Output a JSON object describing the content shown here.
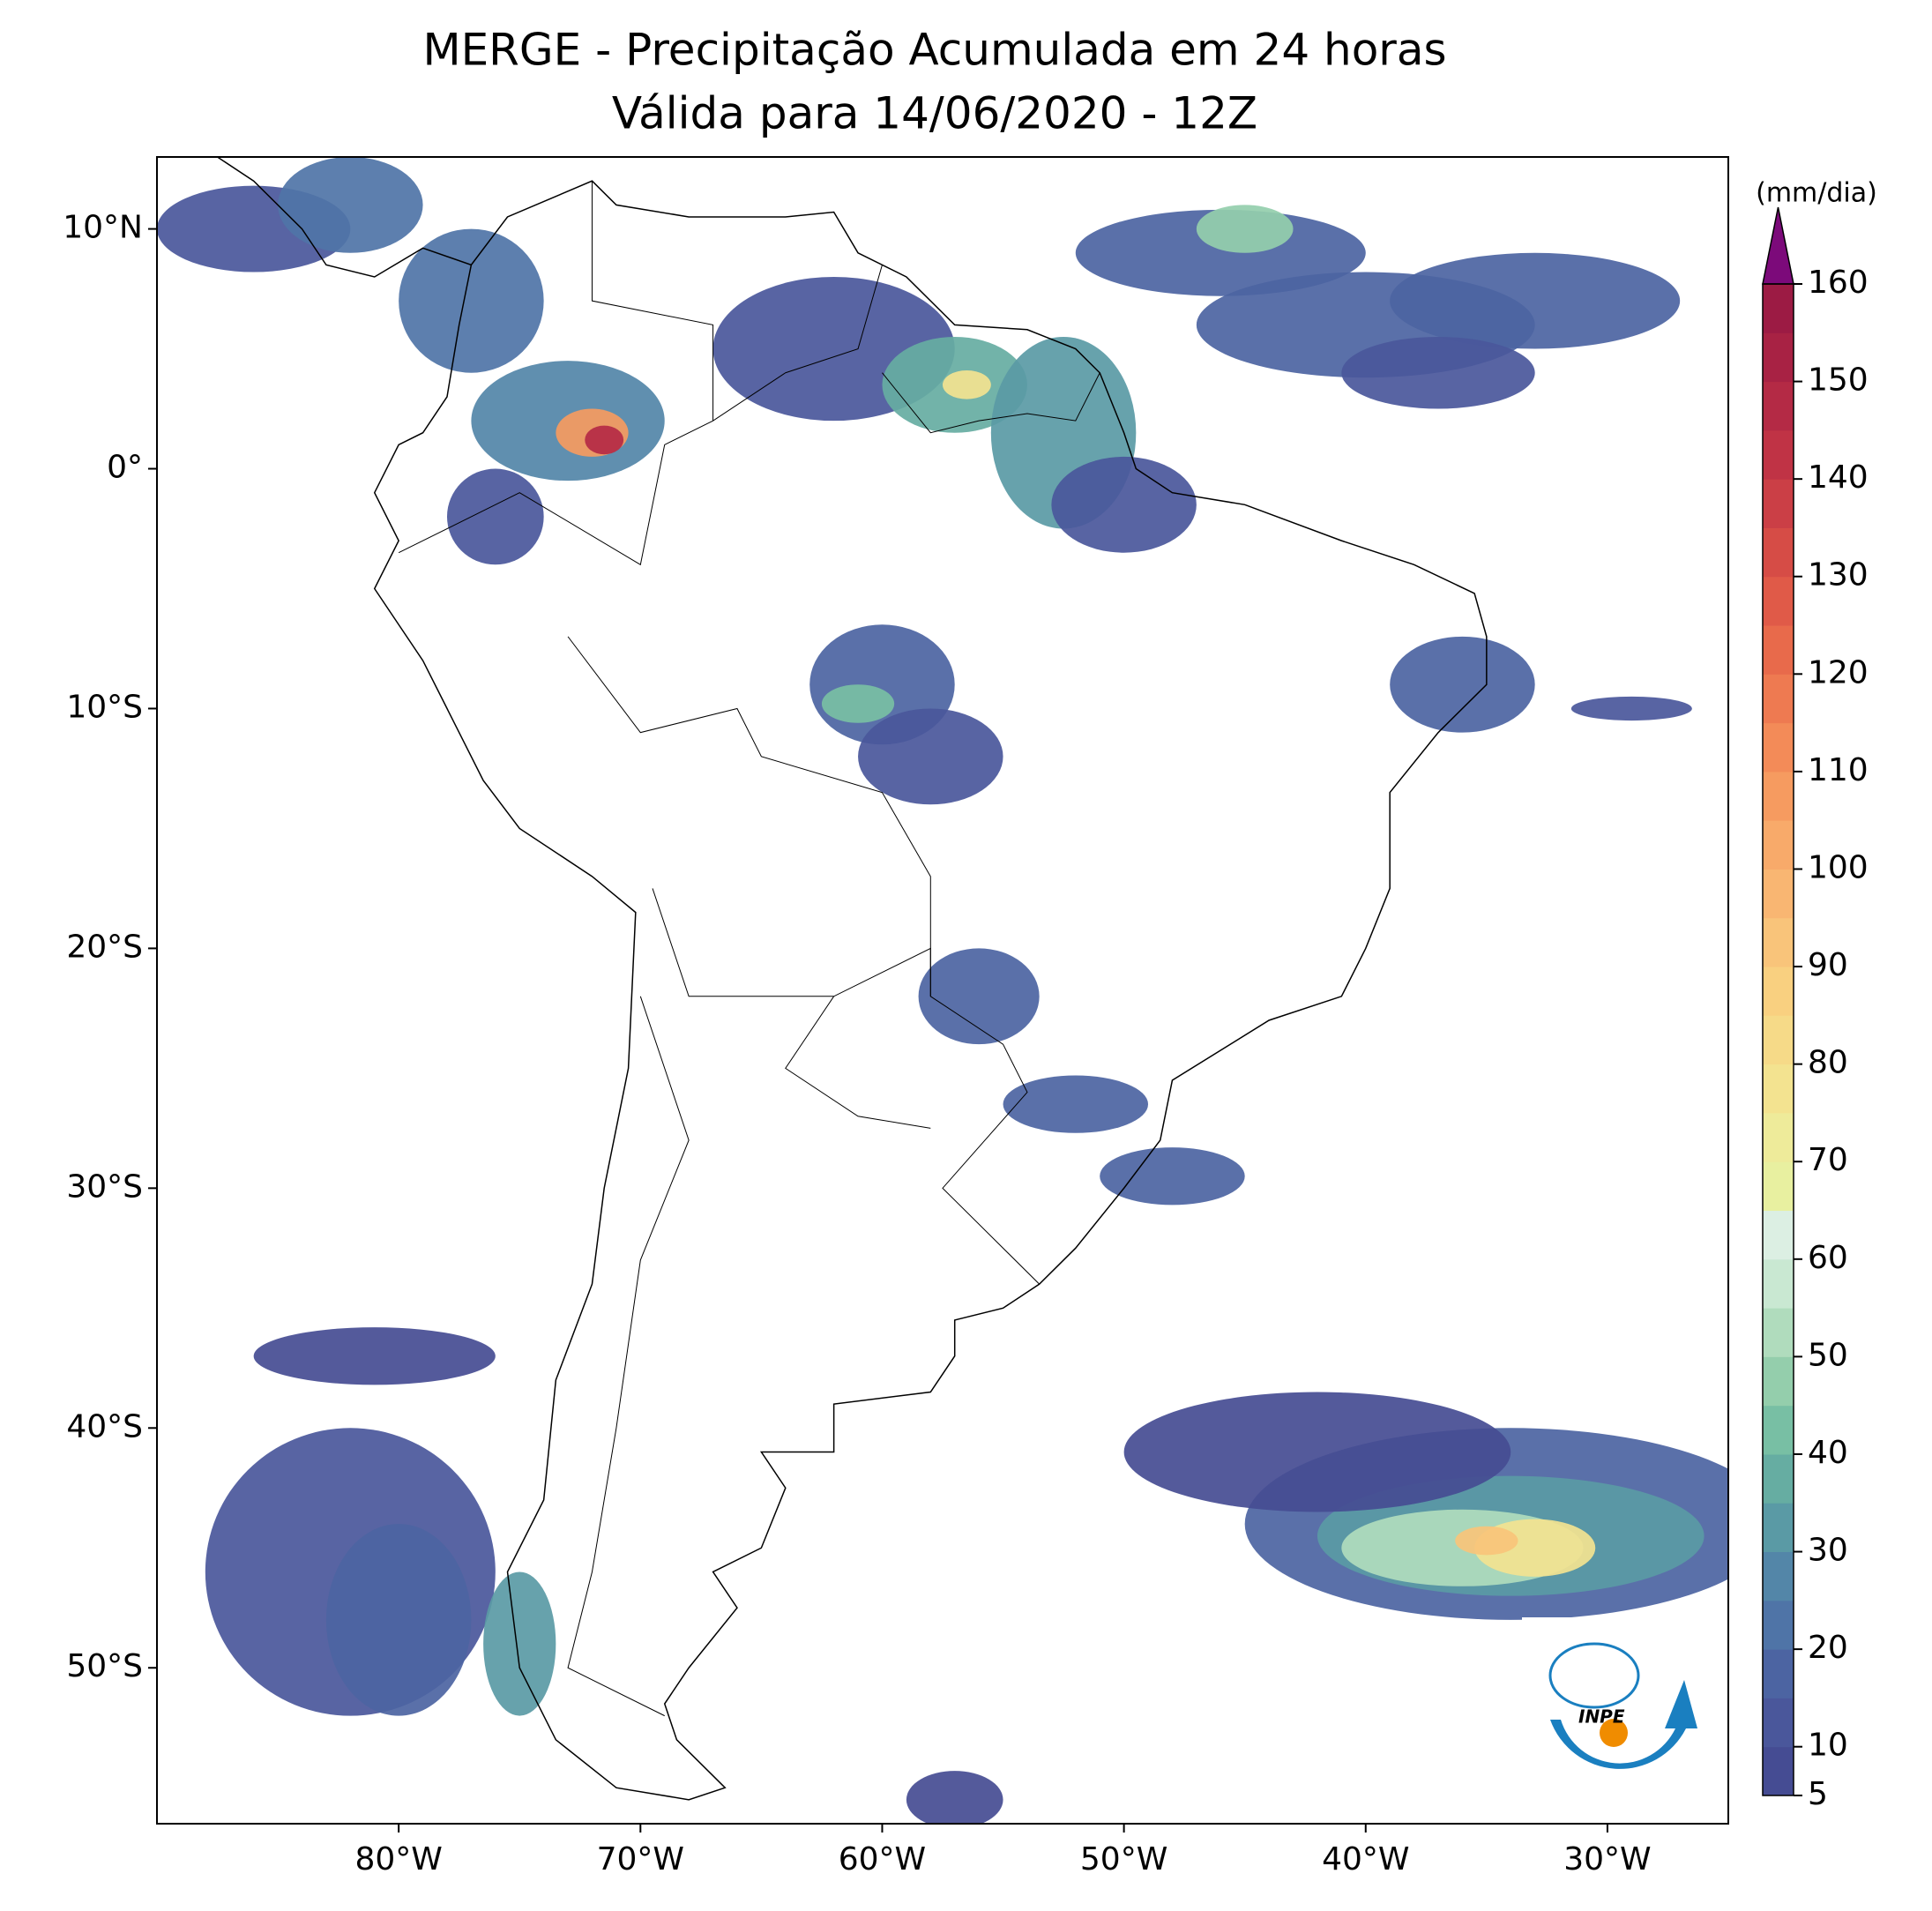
{
  "chart_data": {
    "type": "map",
    "title": "MERGE - Precipitação Acumulada em 24 horas",
    "subtitle": "Válida para 14/06/2020 - 12Z",
    "xlim": [
      -90,
      -25
    ],
    "ylim": [
      -56.5,
      13
    ],
    "xticks": [
      {
        "value": -80,
        "label": "80°W"
      },
      {
        "value": -70,
        "label": "70°W"
      },
      {
        "value": -60,
        "label": "60°W"
      },
      {
        "value": -50,
        "label": "50°W"
      },
      {
        "value": -40,
        "label": "40°W"
      },
      {
        "value": -30,
        "label": "30°W"
      }
    ],
    "yticks": [
      {
        "value": 10,
        "label": "10°N"
      },
      {
        "value": 0,
        "label": "0°"
      },
      {
        "value": -10,
        "label": "10°S"
      },
      {
        "value": -20,
        "label": "20°S"
      },
      {
        "value": -30,
        "label": "30°S"
      },
      {
        "value": -40,
        "label": "40°S"
      },
      {
        "value": -50,
        "label": "50°S"
      }
    ],
    "colorbar": {
      "label": "(mm/dia)",
      "lim": [
        5,
        160
      ],
      "ticks": [
        5,
        10,
        20,
        30,
        40,
        50,
        60,
        70,
        80,
        90,
        100,
        110,
        120,
        130,
        140,
        150,
        160
      ],
      "colors": [
        "#454c93",
        "#4a579b",
        "#4c64a2",
        "#4f74a7",
        "#5386a8",
        "#5a9aa5",
        "#66ada2",
        "#78bfa4",
        "#94ceac",
        "#b0dcbd",
        "#c9e8d2",
        "#dcefe3",
        "#e8f0a0",
        "#eeeb9a",
        "#f3e390",
        "#f6da88",
        "#f9d080",
        "#f9c47a",
        "#f9b672",
        "#f8aa6a",
        "#f69b60",
        "#f38b58",
        "#ee7a51",
        "#e86a4b",
        "#e05a48",
        "#d64c46",
        "#cb3f46",
        "#c03345",
        "#b42a45",
        "#a82244",
        "#9c1b44"
      ],
      "extend_color": "#7c0a7a"
    }
  }
}
